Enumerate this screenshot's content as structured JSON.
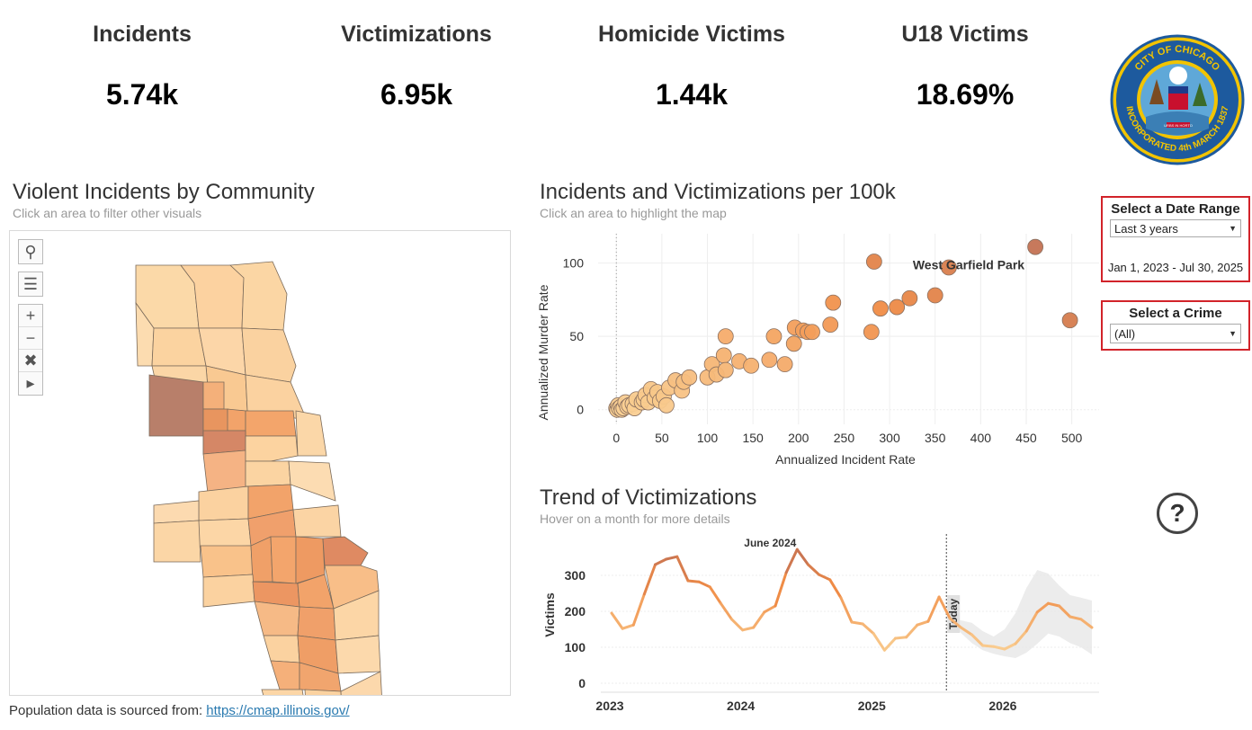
{
  "kpis": [
    {
      "title": "Incidents",
      "value": "5.74k"
    },
    {
      "title": "Victimizations",
      "value": "6.95k"
    },
    {
      "title": "Homicide Victims",
      "value": "1.44k"
    },
    {
      "title": "U18 Victims",
      "value": "18.69%"
    }
  ],
  "seal": {
    "text_top": "CITY OF CHICAGO",
    "text_bottom": "INCORPORATED 4th MARCH 1837",
    "motto": "URBS IN HORTO"
  },
  "map": {
    "title": "Violent Incidents by Community",
    "subtitle": "Click an area to filter other visuals",
    "tools": [
      "search-icon",
      "layers-icon",
      "zoom-in-icon",
      "zoom-out-icon",
      "pin-icon",
      "play-icon"
    ]
  },
  "footer": {
    "text": "Population data is sourced from: ",
    "link": "https://cmap.illinois.gov/"
  },
  "controls": {
    "date_range": {
      "title": "Select a Date Range",
      "selected": "Last 3 years",
      "range_text": "Jan 1, 2023 - Jul 30, 2025"
    },
    "crime": {
      "title": "Select a Crime",
      "selected": "(All)"
    }
  },
  "help_label": "?",
  "chart_data": [
    {
      "type": "scatter",
      "title": "Incidents and Victimizations per 100k",
      "subtitle": "Click an area to highlight the map",
      "xlabel": "Annualized Incident Rate",
      "ylabel": "Annualized Murder Rate",
      "xlim": [
        -20,
        530
      ],
      "ylim": [
        -10,
        120
      ],
      "xticks": [
        0,
        50,
        100,
        150,
        200,
        250,
        300,
        350,
        400,
        450,
        500
      ],
      "yticks": [
        0,
        50,
        100
      ],
      "annotation": {
        "text": "West Garfield Park",
        "x": 460,
        "y": 111
      },
      "points": [
        [
          460,
          111
        ],
        [
          283,
          101
        ],
        [
          365,
          97
        ],
        [
          498,
          61
        ],
        [
          238,
          73
        ],
        [
          322,
          76
        ],
        [
          350,
          78
        ],
        [
          308,
          70
        ],
        [
          290,
          69
        ],
        [
          280,
          53
        ],
        [
          235,
          58
        ],
        [
          196,
          56
        ],
        [
          205,
          54
        ],
        [
          210,
          53
        ],
        [
          215,
          53
        ],
        [
          195,
          45
        ],
        [
          120,
          50
        ],
        [
          173,
          50
        ],
        [
          168,
          34
        ],
        [
          185,
          31
        ],
        [
          118,
          37
        ],
        [
          135,
          33
        ],
        [
          148,
          30
        ],
        [
          105,
          31
        ],
        [
          120,
          27
        ],
        [
          110,
          24
        ],
        [
          100,
          22
        ],
        [
          80,
          22
        ],
        [
          74,
          19
        ],
        [
          65,
          20
        ],
        [
          72,
          13
        ],
        [
          58,
          15
        ],
        [
          52,
          9
        ],
        [
          45,
          12
        ],
        [
          38,
          14
        ],
        [
          42,
          8
        ],
        [
          32,
          10
        ],
        [
          30,
          7
        ],
        [
          28,
          5
        ],
        [
          22,
          7
        ],
        [
          18,
          4
        ],
        [
          14,
          3
        ],
        [
          10,
          5
        ],
        [
          8,
          1
        ],
        [
          5,
          2
        ],
        [
          3,
          1
        ],
        [
          1,
          0
        ],
        [
          0,
          1
        ],
        [
          2,
          3
        ],
        [
          6,
          0
        ],
        [
          12,
          2
        ],
        [
          20,
          1
        ],
        [
          35,
          5
        ],
        [
          48,
          6
        ],
        [
          55,
          3
        ]
      ]
    },
    {
      "type": "line",
      "title": "Trend of Victimizations",
      "subtitle": "Hover on a month for more details",
      "ylabel": "Victims",
      "yticks": [
        0,
        100,
        200,
        300
      ],
      "xtick_labels": [
        "2023",
        "2024",
        "2025",
        "2026"
      ],
      "today_label": "Today",
      "peak_label": "June 2024",
      "series": [
        {
          "values": [
            195,
            152,
            162,
            248,
            330,
            345,
            352,
            285,
            282,
            268,
            222,
            178,
            148,
            155,
            198,
            215,
            308,
            372,
            330,
            302,
            288,
            238,
            170,
            165,
            138,
            92,
            125,
            128,
            162,
            172,
            240,
            180
          ]
        },
        {
          "values": [
            180,
            155,
            135,
            105,
            102,
            95,
            110,
            145,
            198,
            222,
            215,
            185,
            178,
            155
          ]
        }
      ],
      "forecast_band": {
        "upper": [
          180,
          175,
          168,
          145,
          130,
          150,
          195,
          265,
          315,
          305,
          272,
          245,
          238,
          230
        ],
        "lower": [
          180,
          140,
          112,
          92,
          82,
          75,
          70,
          85,
          110,
          138,
          130,
          112,
          100,
          80
        ]
      }
    }
  ]
}
